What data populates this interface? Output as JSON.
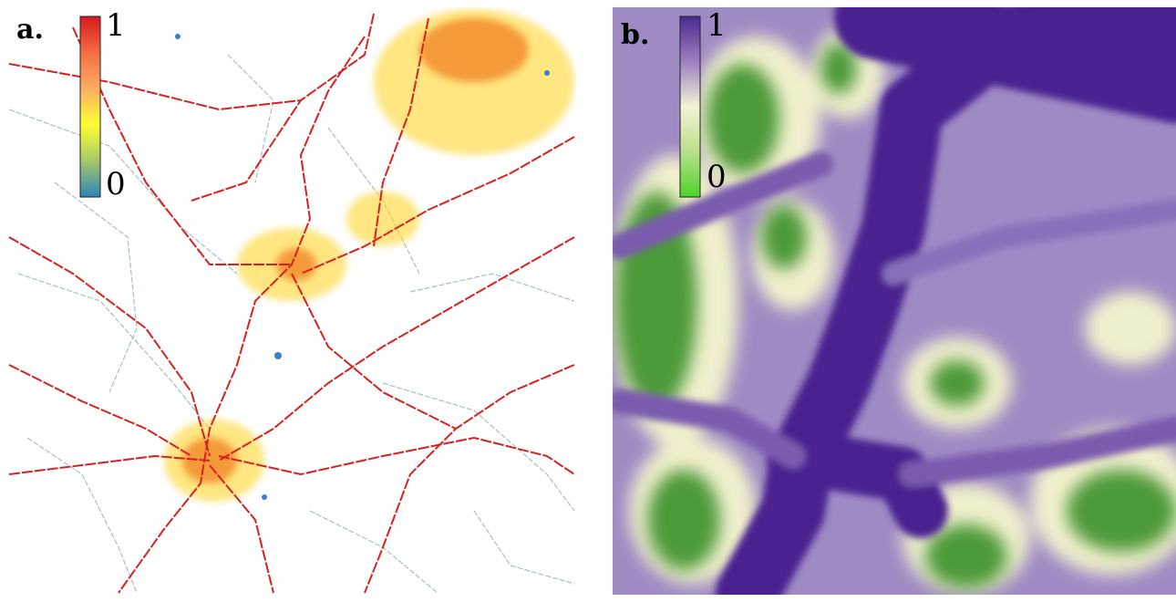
{
  "panels": [
    {
      "label": "a.",
      "colorbar": {
        "max": 1,
        "min": 0,
        "colors": [
          "#d7191c",
          "#f46d43",
          "#fdae61",
          "#ffff33",
          "#a6c96a",
          "#2b83ba"
        ]
      }
    },
    {
      "label": "b.",
      "colorbar": {
        "max": 1,
        "min": 0,
        "colors": [
          "#4b2a91",
          "#9b80c0",
          "#f4f2d6",
          "#b8e08a",
          "#4dd32a"
        ]
      }
    }
  ]
}
